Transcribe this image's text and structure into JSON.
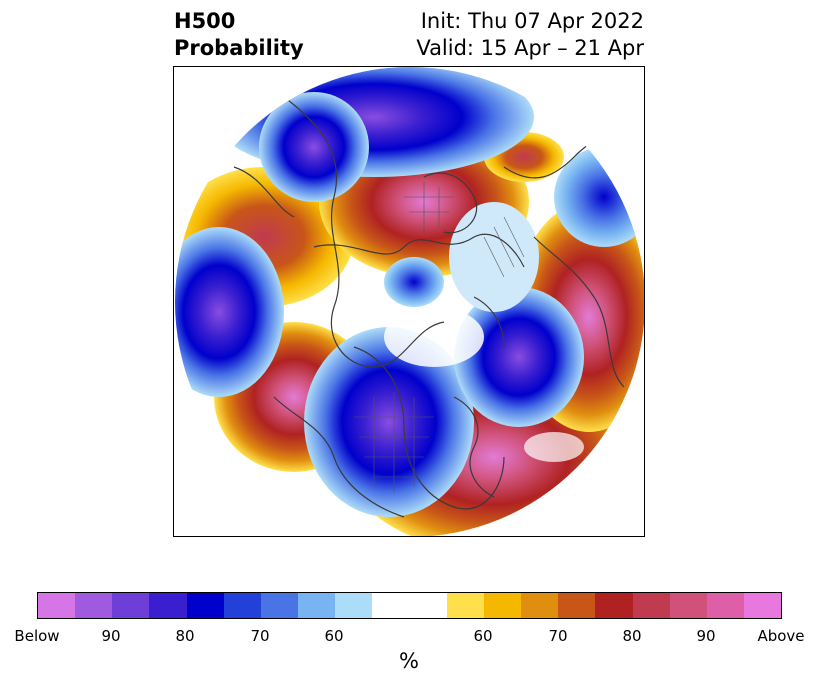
{
  "title": {
    "line1_left": "H500",
    "line2_left": "Probability",
    "line1_right": "Init: Thu 07 Apr 2022",
    "line2_right": "Valid: 15 Apr – 21 Apr"
  },
  "colorbar": {
    "colors": [
      "#d675e6",
      "#a05ae0",
      "#6e3ed8",
      "#3a1fd0",
      "#0000cc",
      "#2340d8",
      "#4a74e6",
      "#78b3f2",
      "#addcf8",
      "#ffffff",
      "#ffffff",
      "#ffe04a",
      "#f5b800",
      "#e08e10",
      "#c85618",
      "#b02222",
      "#c03a50",
      "#d0527a",
      "#dd5fa8",
      "#e878dd"
    ],
    "tick_labels": [
      "Below",
      "90",
      "80",
      "70",
      "60",
      "60",
      "70",
      "80",
      "90",
      "Above"
    ],
    "unit_label": "%"
  }
}
